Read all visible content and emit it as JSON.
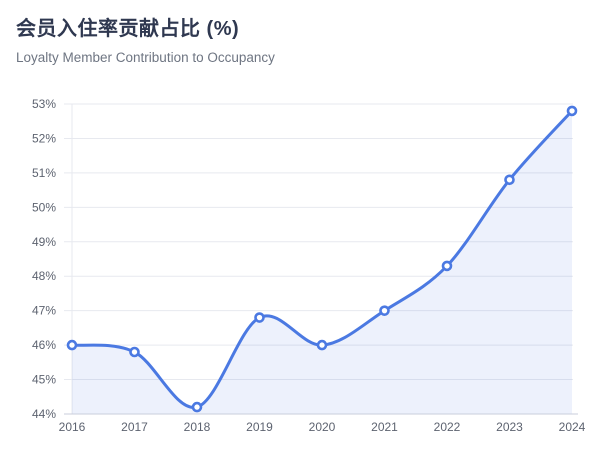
{
  "header": {
    "title": "会员入住率贡献占比 (%)",
    "subtitle": "Loyalty Member Contribution to Occupancy"
  },
  "chart_data": {
    "type": "line",
    "title": "会员入住率贡献占比 (%)",
    "subtitle": "Loyalty Member Contribution to Occupancy",
    "categories": [
      "2016",
      "2017",
      "2018",
      "2019",
      "2020",
      "2021",
      "2022",
      "2023",
      "2024"
    ],
    "series": [
      {
        "name": "会员入住率贡献占比",
        "values": [
          46.0,
          45.8,
          44.2,
          46.8,
          46.0,
          47.0,
          48.3,
          50.8,
          52.8
        ]
      }
    ],
    "xlabel": "",
    "ylabel": "",
    "ylim": [
      44,
      53
    ],
    "ytick_step": 1,
    "ytick_suffix": "%",
    "grid": true,
    "smooth": true,
    "area": true,
    "legend_position": "none",
    "markers": "empty-circle",
    "colors": {
      "line": "#4b79e2",
      "area_fill": "rgba(75, 121, 226, 0.10)",
      "marker_fill": "#ffffff",
      "grid_line": "#e7e9ef",
      "axis_line": "#c9cedb",
      "tick_label": "#5d6370"
    }
  }
}
